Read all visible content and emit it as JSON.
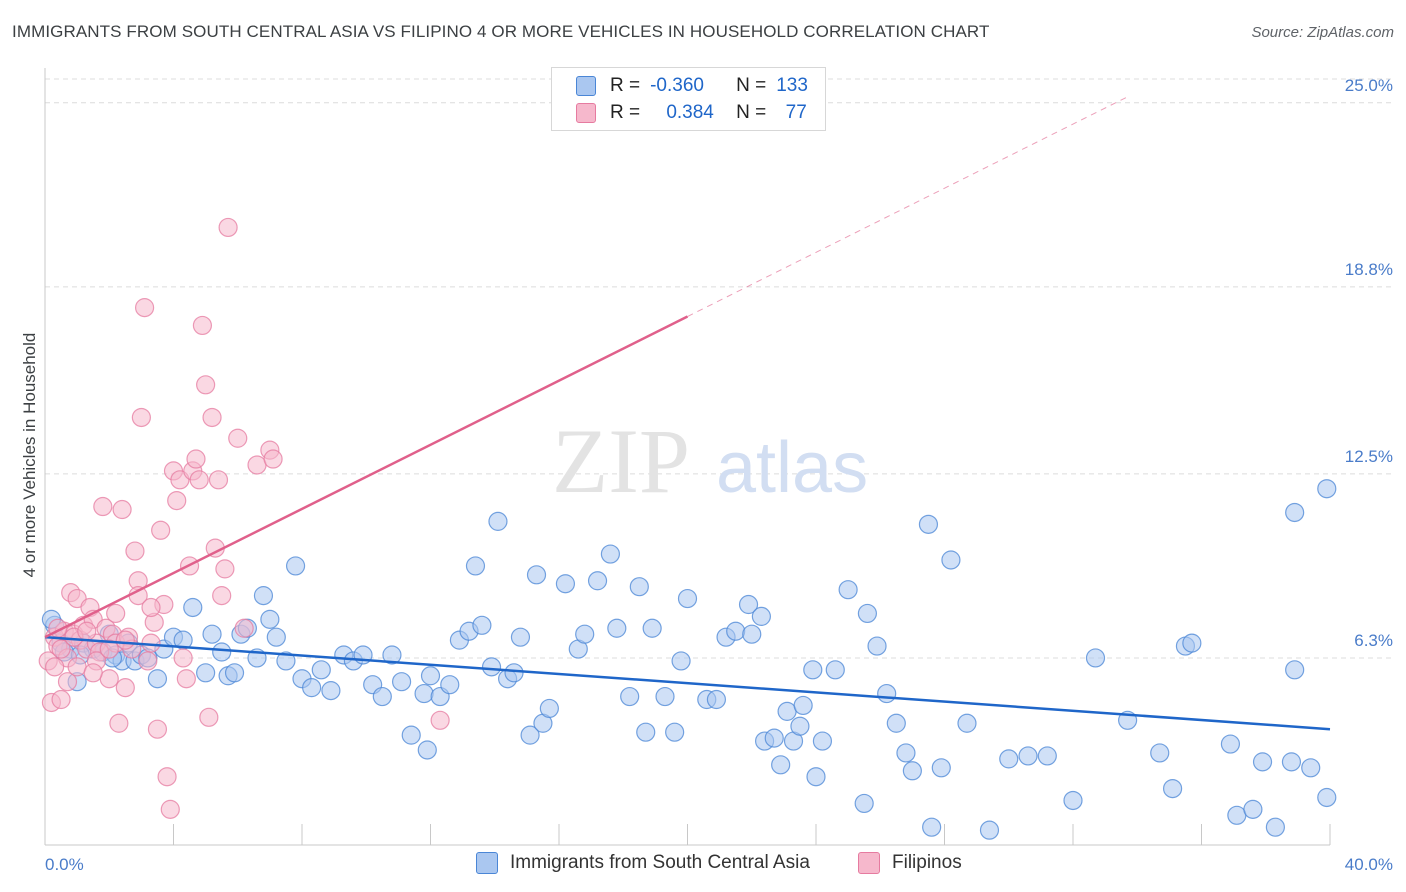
{
  "header": {
    "title": "IMMIGRANTS FROM SOUTH CENTRAL ASIA VS FILIPINO 4 OR MORE VEHICLES IN HOUSEHOLD CORRELATION CHART",
    "source": "Source: ZipAtlas.com"
  },
  "watermark": {
    "zip": "ZIP",
    "atlas": "atlas"
  },
  "legend": {
    "rows": [
      {
        "r_label": "R =",
        "r_value": "-0.360",
        "n_label": "N =",
        "n_value": "133",
        "color": "#aac7f0"
      },
      {
        "r_label": "R =",
        "r_value": "0.384",
        "n_label": "N =",
        "n_value": "77",
        "color": "#f6b8cc"
      }
    ]
  },
  "bottom_legend": {
    "items": [
      {
        "label": "Immigrants from South Central Asia",
        "color": "#aac7f0"
      },
      {
        "label": "Filipinos",
        "color": "#f6b8cc"
      }
    ]
  },
  "chart_data": {
    "type": "scatter",
    "title": "IMMIGRANTS FROM SOUTH CENTRAL ASIA VS FILIPINO 4 OR MORE VEHICLES IN HOUSEHOLD CORRELATION CHART",
    "xlabel": "",
    "ylabel": "4 or more Vehicles in Household",
    "xlim": [
      0,
      40
    ],
    "ylim": [
      0,
      25.8
    ],
    "x_tick_labels": [
      {
        "value": 0,
        "label": "0.0%"
      },
      {
        "value": 40,
        "label": "40.0%"
      }
    ],
    "y_ticks": [
      {
        "value": 6.3,
        "label": "6.3%"
      },
      {
        "value": 12.5,
        "label": "12.5%"
      },
      {
        "value": 18.8,
        "label": "18.8%"
      },
      {
        "value": 25.0,
        "label": "25.0%"
      }
    ],
    "grid": true,
    "legend_position": "top-center",
    "series": [
      {
        "name": "Immigrants from South Central Asia",
        "color": "#4a86d6",
        "fill": "#aac7f0",
        "trend": {
          "x": [
            0,
            40
          ],
          "y": [
            7.0,
            3.9
          ],
          "style": "solid",
          "color": "#1f66c9"
        },
        "points": [
          [
            0.3,
            7.4
          ],
          [
            0.5,
            6.8
          ],
          [
            0.8,
            6.6
          ],
          [
            1.0,
            5.5
          ],
          [
            1.2,
            6.8
          ],
          [
            1.5,
            6.6
          ],
          [
            1.8,
            6.5
          ],
          [
            2.0,
            7.1
          ],
          [
            2.2,
            6.4
          ],
          [
            2.4,
            6.2
          ],
          [
            2.6,
            6.8
          ],
          [
            2.8,
            6.2
          ],
          [
            3.0,
            6.4
          ],
          [
            3.2,
            6.3
          ],
          [
            3.5,
            5.6
          ],
          [
            3.7,
            6.6
          ],
          [
            4.0,
            7.0
          ],
          [
            4.3,
            6.9
          ],
          [
            4.6,
            8.0
          ],
          [
            5.0,
            5.8
          ],
          [
            5.2,
            7.1
          ],
          [
            5.5,
            6.5
          ],
          [
            5.7,
            5.7
          ],
          [
            5.9,
            5.8
          ],
          [
            6.1,
            7.1
          ],
          [
            6.3,
            7.3
          ],
          [
            6.6,
            6.3
          ],
          [
            6.8,
            8.4
          ],
          [
            7.0,
            7.6
          ],
          [
            7.2,
            7.0
          ],
          [
            7.5,
            6.2
          ],
          [
            7.8,
            9.4
          ],
          [
            8.0,
            5.6
          ],
          [
            8.3,
            5.3
          ],
          [
            8.6,
            5.9
          ],
          [
            8.9,
            5.2
          ],
          [
            9.3,
            6.4
          ],
          [
            9.6,
            6.2
          ],
          [
            9.9,
            6.4
          ],
          [
            10.2,
            5.4
          ],
          [
            10.5,
            5.0
          ],
          [
            10.8,
            6.4
          ],
          [
            11.1,
            5.5
          ],
          [
            11.4,
            3.7
          ],
          [
            11.8,
            5.1
          ],
          [
            11.9,
            3.2
          ],
          [
            12.0,
            5.7
          ],
          [
            12.3,
            5.0
          ],
          [
            12.6,
            5.4
          ],
          [
            12.9,
            6.9
          ],
          [
            13.2,
            7.2
          ],
          [
            13.4,
            9.4
          ],
          [
            13.6,
            7.4
          ],
          [
            13.9,
            6.0
          ],
          [
            14.1,
            10.9
          ],
          [
            14.4,
            5.6
          ],
          [
            14.6,
            5.8
          ],
          [
            14.8,
            7.0
          ],
          [
            15.1,
            3.7
          ],
          [
            15.3,
            9.1
          ],
          [
            15.5,
            4.1
          ],
          [
            15.7,
            4.6
          ],
          [
            16.2,
            8.8
          ],
          [
            16.6,
            6.6
          ],
          [
            16.8,
            7.1
          ],
          [
            17.2,
            8.9
          ],
          [
            17.6,
            9.8
          ],
          [
            17.8,
            7.3
          ],
          [
            18.2,
            5.0
          ],
          [
            18.5,
            8.7
          ],
          [
            18.7,
            3.8
          ],
          [
            18.9,
            7.3
          ],
          [
            19.3,
            5.0
          ],
          [
            19.6,
            3.8
          ],
          [
            19.8,
            6.2
          ],
          [
            20.0,
            8.3
          ],
          [
            20.6,
            4.9
          ],
          [
            20.9,
            4.9
          ],
          [
            21.2,
            7.0
          ],
          [
            21.5,
            7.2
          ],
          [
            21.9,
            8.1
          ],
          [
            22.0,
            7.1
          ],
          [
            22.3,
            7.7
          ],
          [
            22.4,
            3.5
          ],
          [
            22.7,
            3.6
          ],
          [
            22.9,
            2.7
          ],
          [
            23.1,
            4.5
          ],
          [
            23.3,
            3.5
          ],
          [
            23.5,
            4.0
          ],
          [
            23.6,
            4.7
          ],
          [
            23.9,
            5.9
          ],
          [
            24.0,
            2.3
          ],
          [
            24.2,
            3.5
          ],
          [
            24.6,
            5.9
          ],
          [
            25.0,
            8.6
          ],
          [
            25.5,
            1.4
          ],
          [
            25.6,
            7.8
          ],
          [
            25.9,
            6.7
          ],
          [
            26.2,
            5.1
          ],
          [
            26.5,
            4.1
          ],
          [
            26.8,
            3.1
          ],
          [
            27.0,
            2.5
          ],
          [
            27.5,
            10.8
          ],
          [
            27.6,
            0.6
          ],
          [
            27.9,
            2.6
          ],
          [
            28.2,
            9.6
          ],
          [
            28.7,
            4.1
          ],
          [
            29.4,
            0.5
          ],
          [
            30.0,
            2.9
          ],
          [
            30.6,
            3.0
          ],
          [
            31.2,
            3.0
          ],
          [
            32.0,
            1.5
          ],
          [
            32.7,
            6.3
          ],
          [
            33.7,
            4.2
          ],
          [
            34.7,
            3.1
          ],
          [
            35.1,
            1.9
          ],
          [
            35.5,
            6.7
          ],
          [
            35.7,
            6.8
          ],
          [
            36.9,
            3.4
          ],
          [
            37.1,
            1.0
          ],
          [
            37.6,
            1.2
          ],
          [
            37.9,
            2.8
          ],
          [
            38.3,
            0.6
          ],
          [
            38.8,
            2.8
          ],
          [
            38.9,
            11.2
          ],
          [
            38.9,
            5.9
          ],
          [
            39.4,
            2.6
          ],
          [
            39.9,
            12.0
          ],
          [
            39.9,
            1.6
          ],
          [
            0.2,
            7.6
          ],
          [
            0.6,
            6.5
          ],
          [
            1.1,
            6.4
          ],
          [
            2.1,
            6.3
          ]
        ]
      },
      {
        "name": "Filipinos",
        "color": "#e67ba0",
        "fill": "#f6b8cc",
        "trend": {
          "x": [
            0,
            20
          ],
          "y": [
            7.0,
            17.8
          ],
          "style": "solid",
          "color": "#e0608b",
          "extension": {
            "x": [
              20,
              33.7
            ],
            "y": [
              17.8,
              25.2
            ],
            "style": "dashed"
          }
        },
        "points": [
          [
            0.1,
            6.2
          ],
          [
            0.2,
            4.8
          ],
          [
            0.3,
            7.0
          ],
          [
            0.4,
            6.7
          ],
          [
            0.5,
            4.9
          ],
          [
            0.6,
            7.2
          ],
          [
            0.7,
            6.3
          ],
          [
            0.8,
            8.5
          ],
          [
            0.9,
            7.1
          ],
          [
            1.0,
            8.3
          ],
          [
            1.1,
            6.9
          ],
          [
            1.2,
            7.4
          ],
          [
            1.3,
            6.6
          ],
          [
            1.4,
            8.0
          ],
          [
            1.5,
            7.6
          ],
          [
            1.6,
            6.8
          ],
          [
            1.7,
            6.5
          ],
          [
            1.8,
            11.4
          ],
          [
            1.9,
            7.3
          ],
          [
            2.0,
            5.6
          ],
          [
            2.1,
            7.1
          ],
          [
            2.2,
            6.8
          ],
          [
            2.3,
            4.1
          ],
          [
            2.4,
            11.3
          ],
          [
            2.5,
            5.3
          ],
          [
            2.6,
            7.0
          ],
          [
            2.7,
            6.6
          ],
          [
            2.8,
            9.9
          ],
          [
            2.9,
            8.9
          ],
          [
            3.0,
            14.4
          ],
          [
            3.1,
            18.1
          ],
          [
            3.2,
            6.2
          ],
          [
            3.3,
            6.8
          ],
          [
            3.4,
            7.5
          ],
          [
            3.5,
            3.9
          ],
          [
            3.6,
            10.6
          ],
          [
            3.7,
            8.1
          ],
          [
            3.8,
            2.3
          ],
          [
            3.9,
            1.2
          ],
          [
            4.0,
            12.6
          ],
          [
            4.1,
            11.6
          ],
          [
            4.2,
            12.3
          ],
          [
            4.3,
            6.3
          ],
          [
            4.4,
            5.6
          ],
          [
            4.5,
            9.4
          ],
          [
            4.6,
            12.6
          ],
          [
            4.7,
            13.0
          ],
          [
            4.8,
            12.3
          ],
          [
            4.9,
            17.5
          ],
          [
            5.0,
            15.5
          ],
          [
            5.1,
            4.3
          ],
          [
            5.2,
            14.4
          ],
          [
            5.3,
            10.0
          ],
          [
            5.4,
            12.3
          ],
          [
            5.5,
            8.4
          ],
          [
            5.6,
            9.3
          ],
          [
            5.7,
            20.8
          ],
          [
            6.0,
            13.7
          ],
          [
            6.2,
            7.3
          ],
          [
            6.6,
            12.8
          ],
          [
            7.0,
            13.3
          ],
          [
            7.1,
            13.0
          ],
          [
            0.3,
            6.0
          ],
          [
            0.5,
            6.6
          ],
          [
            0.9,
            7.0
          ],
          [
            1.3,
            7.2
          ],
          [
            1.6,
            6.2
          ],
          [
            2.2,
            7.8
          ],
          [
            2.5,
            6.9
          ],
          [
            2.9,
            8.4
          ],
          [
            12.3,
            4.2
          ],
          [
            0.4,
            7.3
          ],
          [
            0.7,
            5.5
          ],
          [
            1.0,
            6.0
          ],
          [
            1.5,
            5.8
          ],
          [
            2.0,
            6.6
          ],
          [
            3.3,
            8.0
          ]
        ]
      }
    ]
  }
}
